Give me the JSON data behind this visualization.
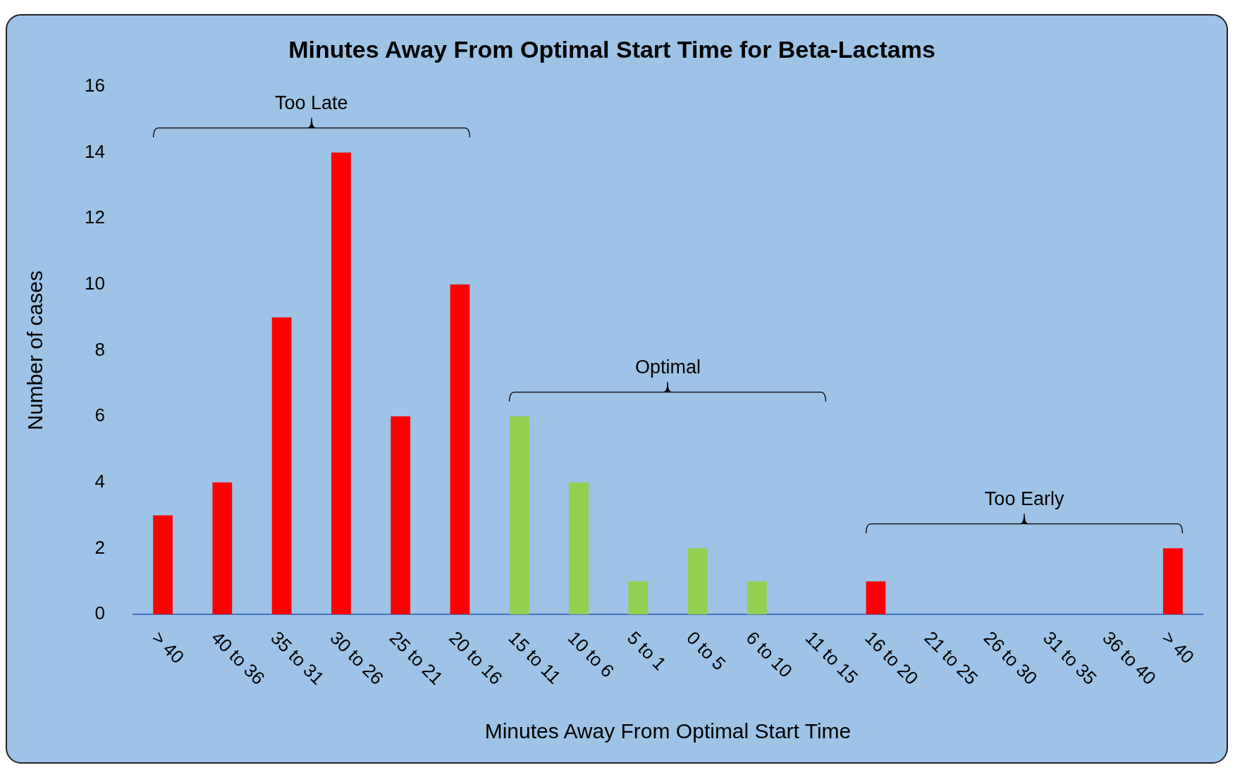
{
  "chart_data": {
    "type": "bar",
    "title": "Minutes Away From Optimal Start Time for Beta-Lactams",
    "xlabel": "Minutes Away From Optimal Start Time",
    "ylabel": "Number of cases",
    "categories": [
      "> 40",
      "40 to 36",
      "35 to 31",
      "30 to 26",
      "25 to 21",
      "20 to 16",
      "15 to 11",
      "10 to 6",
      "5 to 1",
      "0 to 5",
      "6 to 10",
      "11 to 15",
      "16 to 20",
      "21 to 25",
      "26 to 30",
      "31 to 35",
      "36 to 40",
      "> 40"
    ],
    "values": [
      3,
      4,
      9,
      14,
      6,
      10,
      6,
      4,
      1,
      2,
      1,
      0,
      1,
      0,
      0,
      0,
      0,
      2
    ],
    "colors": [
      "#ff0000",
      "#ff0000",
      "#ff0000",
      "#ff0000",
      "#ff0000",
      "#ff0000",
      "#92d050",
      "#92d050",
      "#92d050",
      "#92d050",
      "#92d050",
      "#92d050",
      "#ff0000",
      "#ff0000",
      "#ff0000",
      "#ff0000",
      "#ff0000",
      "#ff0000"
    ],
    "ylim": [
      0,
      16
    ],
    "yticks": [
      0,
      2,
      4,
      6,
      8,
      10,
      12,
      14,
      16
    ],
    "grid": false,
    "legend": false,
    "annotations": [
      "Too Late",
      "Optimal",
      "Too Early"
    ]
  }
}
